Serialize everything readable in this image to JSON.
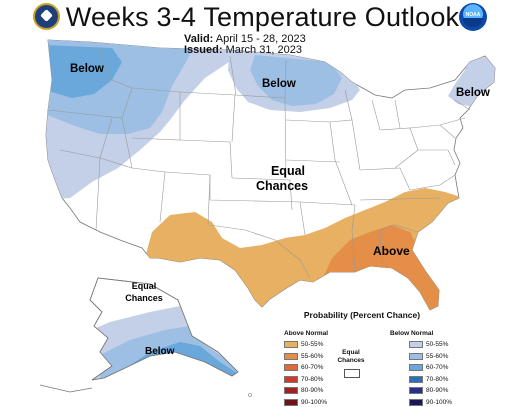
{
  "header": {
    "title": "Weeks 3-4 Temperature Outlook",
    "valid_label": "Valid:",
    "valid_value": "April 15 - 28, 2023",
    "issued_label": "Issued:",
    "issued_value": "March 31, 2023"
  },
  "logos": {
    "left": "doc-seal-logo",
    "right": "noaa-logo",
    "right_text": "NOAA"
  },
  "map_labels": {
    "below_west": "Below",
    "below_north": "Below",
    "below_northeast": "Below",
    "equal_line1": "Equal",
    "equal_line2": "Chances",
    "above_southeast": "Above",
    "alaska_equal_line1": "Equal",
    "alaska_equal_line2": "Chances",
    "alaska_below": "Below"
  },
  "colors": {
    "below_50_55": "#c4cfe8",
    "below_55_60": "#9dbfe3",
    "below_60_70": "#6aa8dc",
    "above_50_55": "#e8b062",
    "above_55_60": "#e58e47",
    "above_60_70": "#e06a3a",
    "boundary": "#9a9a9a"
  },
  "legend": {
    "title": "Probability (Percent Chance)",
    "above_header": "Above Normal",
    "below_header": "Below Normal",
    "equal_line1": "Equal",
    "equal_line2": "Chances",
    "above_items": [
      {
        "label": "50-55%",
        "color": "#e8b062"
      },
      {
        "label": "55-60%",
        "color": "#e58e47"
      },
      {
        "label": "60-70%",
        "color": "#e06a3a"
      },
      {
        "label": "70-80%",
        "color": "#cf3a2a"
      },
      {
        "label": "80-90%",
        "color": "#a32020"
      },
      {
        "label": "90-100%",
        "color": "#6e1414"
      }
    ],
    "below_items": [
      {
        "label": "50-55%",
        "color": "#c4cfe8"
      },
      {
        "label": "55-60%",
        "color": "#9dbfe3"
      },
      {
        "label": "60-70%",
        "color": "#6aa8dc"
      },
      {
        "label": "70-80%",
        "color": "#2f6fb8"
      },
      {
        "label": "80-90%",
        "color": "#262f8a"
      },
      {
        "label": "90-100%",
        "color": "#1a1458"
      }
    ]
  }
}
